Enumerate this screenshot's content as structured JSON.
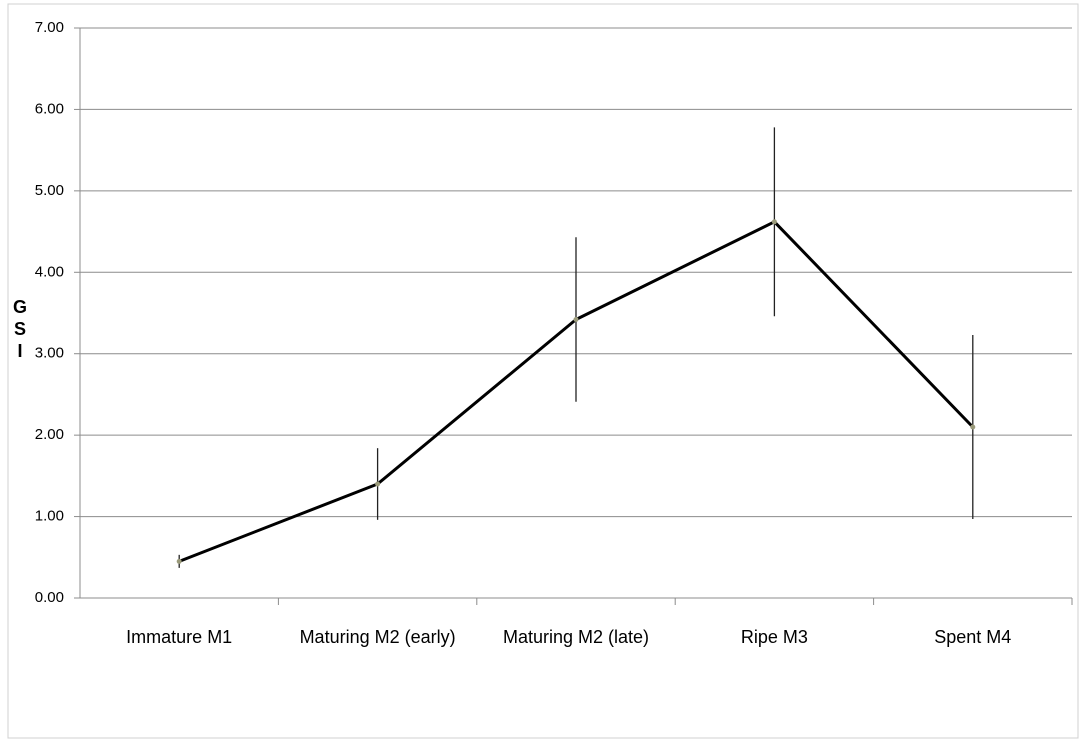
{
  "chart_data": {
    "type": "line",
    "y_label": "GSI",
    "categories": [
      "Immature M1",
      "Maturing M2 (early)",
      "Maturing M2 (late)",
      "Ripe M3",
      "Spent M4"
    ],
    "series": [
      {
        "name": "GSI",
        "color": "#000000",
        "values": [
          0.45,
          1.4,
          3.42,
          4.62,
          2.1
        ],
        "errors": [
          0.08,
          0.44,
          1.01,
          1.16,
          1.13
        ]
      }
    ],
    "ylim": [
      0,
      7
    ],
    "yticks": [
      {
        "value": 0,
        "label": "0.00"
      },
      {
        "value": 1,
        "label": "1.00"
      },
      {
        "value": 2,
        "label": "2.00"
      },
      {
        "value": 3,
        "label": "3.00"
      },
      {
        "value": 4,
        "label": "4.00"
      },
      {
        "value": 5,
        "label": "5.00"
      },
      {
        "value": 6,
        "label": "6.00"
      },
      {
        "value": 7,
        "label": "7.00"
      }
    ],
    "grid": true
  }
}
